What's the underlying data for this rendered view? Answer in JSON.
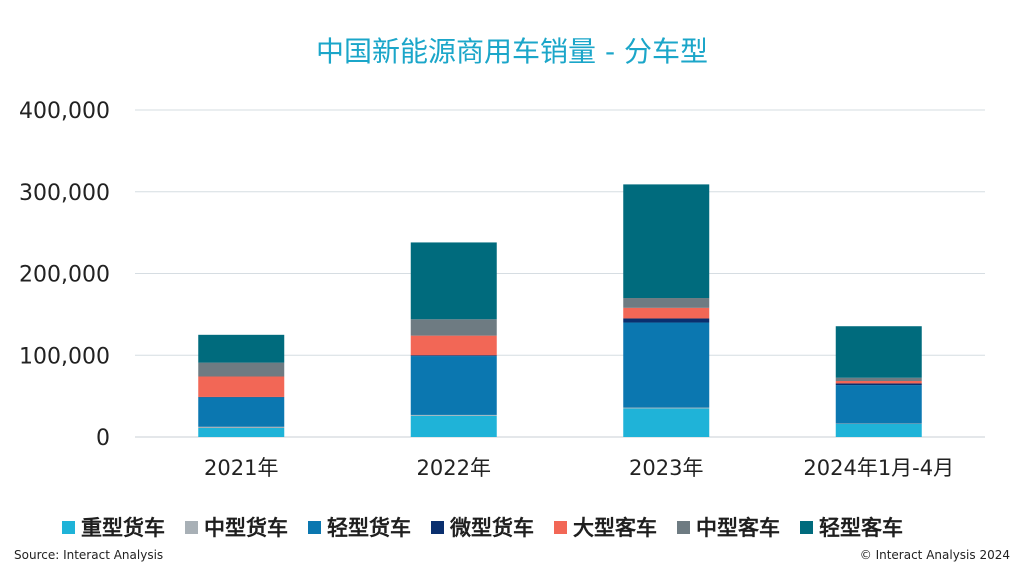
{
  "chart_data": {
    "type": "bar",
    "stacked": true,
    "title": "中国新能源商用车销量 - 分车型",
    "categories": [
      "2021年",
      "2022年",
      "2023年",
      "2024年1月-4月"
    ],
    "ylim": [
      0,
      400000
    ],
    "yticks": [
      "0",
      "100,000",
      "200,000",
      "300,000",
      "400,000"
    ],
    "grid": true,
    "legend_position": "bottom",
    "series": [
      {
        "name": "重型货车",
        "color": "#1fb3d8",
        "values": [
          11000,
          26000,
          35000,
          16000
        ]
      },
      {
        "name": "中型货车",
        "color": "#a8b0b6",
        "values": [
          1500,
          1000,
          1000,
          500
        ]
      },
      {
        "name": "轻型货车",
        "color": "#0b77b0",
        "values": [
          36000,
          72000,
          104000,
          47000
        ]
      },
      {
        "name": "微型货车",
        "color": "#0a2f6e",
        "values": [
          500,
          1000,
          5000,
          2000
        ]
      },
      {
        "name": "大型客车",
        "color": "#f26756",
        "values": [
          25000,
          24000,
          13000,
          3000
        ]
      },
      {
        "name": "中型客车",
        "color": "#6e7b82",
        "values": [
          17000,
          20000,
          12000,
          4000
        ]
      },
      {
        "name": "轻型客车",
        "color": "#006b7d",
        "values": [
          34000,
          94000,
          139000,
          63000
        ]
      }
    ]
  },
  "footer": {
    "source": "Source: Interact Analysis",
    "copyright": "© Interact Analysis 2024"
  }
}
